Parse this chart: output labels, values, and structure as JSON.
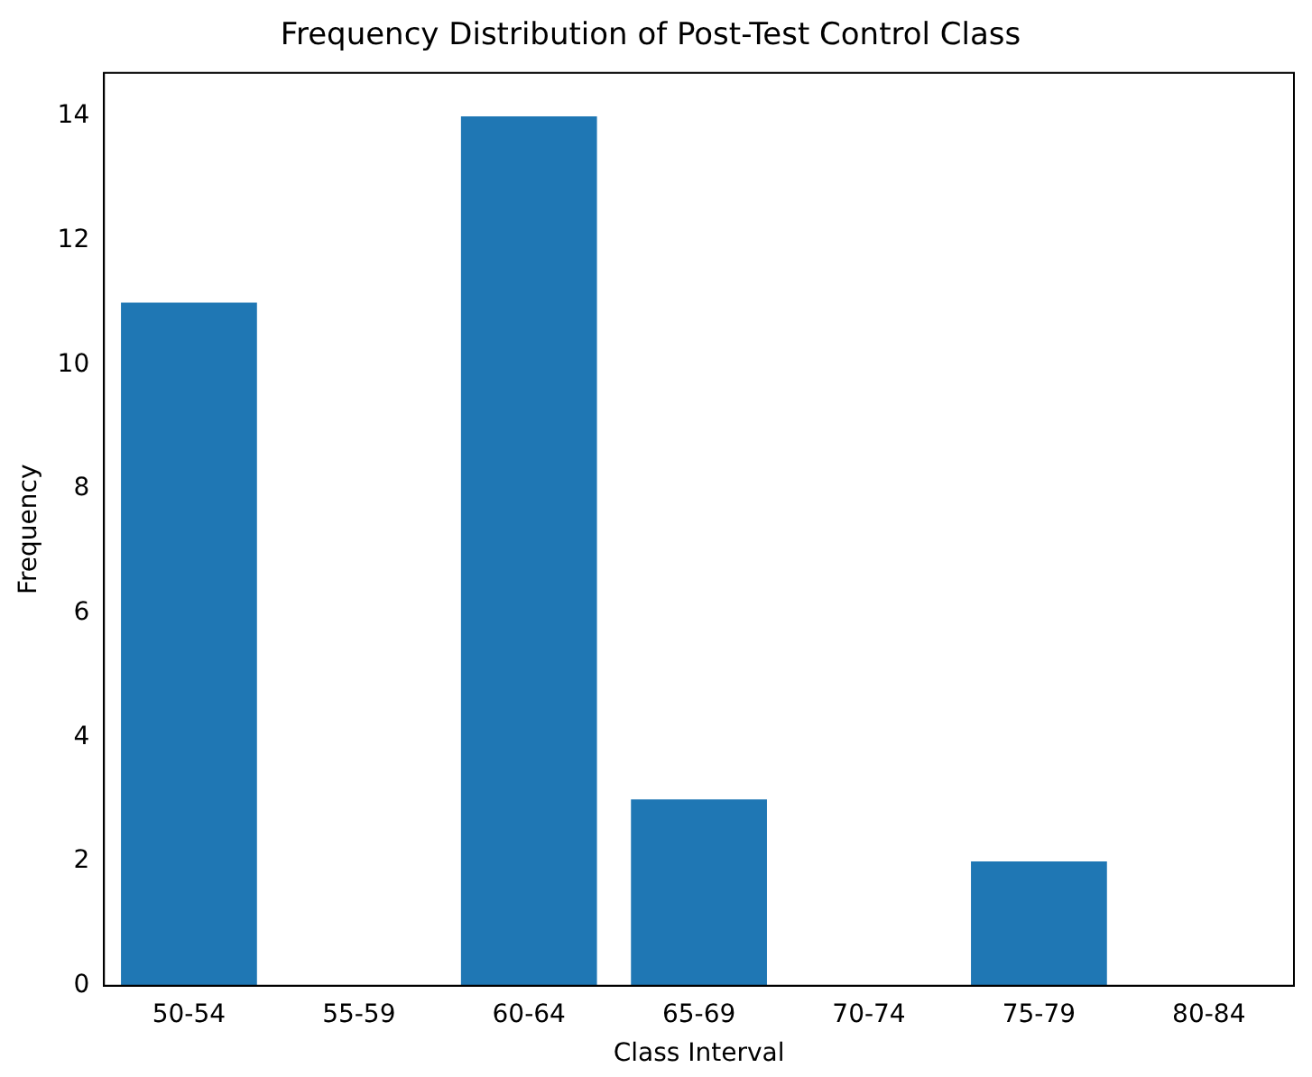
{
  "chart_data": {
    "type": "bar",
    "title": "Frequency Distribution of Post-Test Control Class",
    "xlabel": "Class Interval",
    "ylabel": "Frequency",
    "categories": [
      "50-54",
      "55-59",
      "60-64",
      "65-69",
      "70-74",
      "75-79",
      "80-84"
    ],
    "values": [
      11,
      0,
      14,
      3,
      0,
      2,
      0
    ],
    "color": "#1f77b4",
    "ylim": [
      0,
      14.7
    ],
    "yticks": [
      0,
      2,
      4,
      6,
      8,
      10,
      12,
      14
    ],
    "grid": false,
    "legend": false
  }
}
